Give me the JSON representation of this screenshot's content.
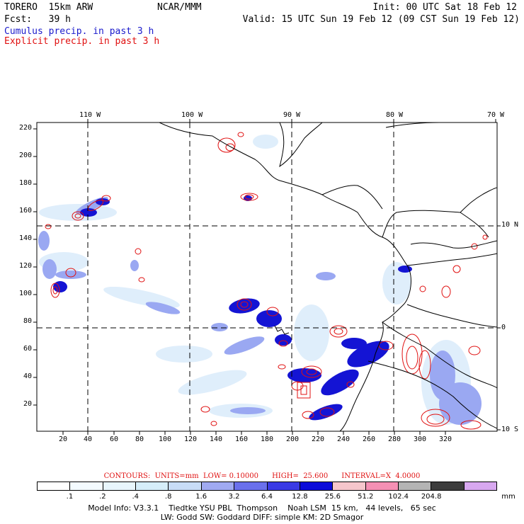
{
  "header": {
    "model": "TORERO  15km ARW",
    "org": "NCAR/MMM",
    "init": "Init: 00 UTC Sat 18 Feb 12",
    "fcst": "Fcst:   39 h",
    "valid": "Valid: 15 UTC Sun 19 Feb 12 (09 CST Sun 19 Feb 12)",
    "field1": "Cumulus precip. in past 3 h",
    "field2": "Explicit precip. in past 3 h"
  },
  "axes": {
    "top_lon": [
      "110 W",
      "100 W",
      "90 W",
      "80 W",
      "70 W"
    ],
    "right_lat": [
      "10 N",
      "0",
      "10 S"
    ],
    "left_grid": [
      "220",
      "200",
      "180",
      "160",
      "140",
      "120",
      "100",
      "80",
      "60",
      "40",
      "20"
    ],
    "bottom_grid": [
      "20",
      "40",
      "60",
      "80",
      "100",
      "120",
      "140",
      "160",
      "180",
      "200",
      "220",
      "240",
      "260",
      "280",
      "300",
      "320"
    ]
  },
  "colors": {
    "cumulus_label": "#1a1acc",
    "explicit_label": "#e01010",
    "land_line": "#000000",
    "contour": "#e01010"
  },
  "contours_text": "CONTOURS:  UNITS=mm  LOW= 0.10000      HIGH=  25.600      INTERVAL=X  4.0000",
  "colorbar": {
    "colors": [
      "#ffffff",
      "#f4fbff",
      "#e8f6fd",
      "#d6eefa",
      "#c8dcf7",
      "#a0aaf2",
      "#6a70ec",
      "#3a3ae4",
      "#0b0bd9",
      "#f6c6cc",
      "#f590b4",
      "#b4b4b4",
      "#3c3c3c",
      "#d8a8f0"
    ],
    "labels": [
      ".1",
      ".2",
      ".4",
      ".8",
      "1.6",
      "3.2",
      "6.4",
      "12.8",
      "25.6",
      "51.2",
      "102.4",
      "204.8"
    ],
    "unit": "mm"
  },
  "footer": {
    "line1": "Model Info: V3.3.1    Tiedtke YSU PBL  Thompson    Noah LSM  15 km,   44 levels,   65 sec",
    "line2": "LW: Godd SW: Goddard DIFF: simple KM: 2D Smagor"
  }
}
